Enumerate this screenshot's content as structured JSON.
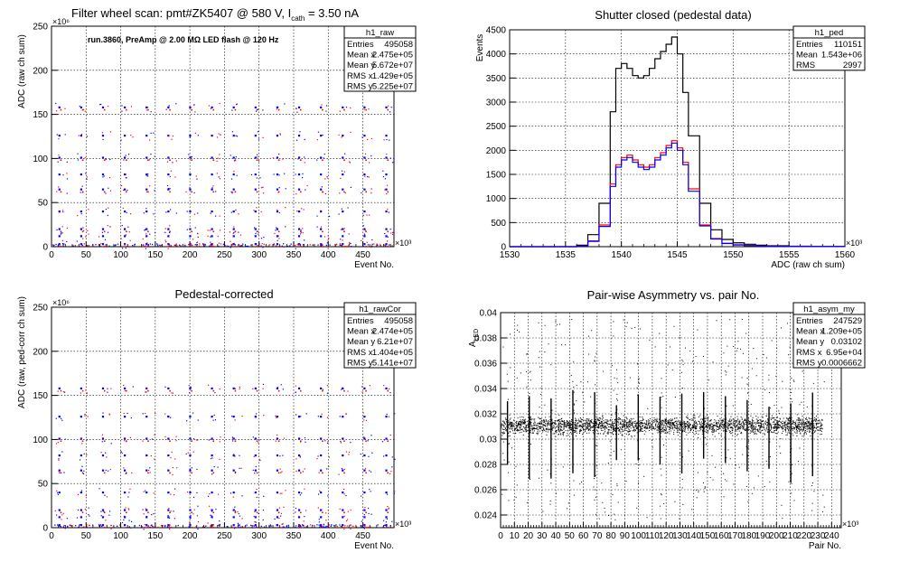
{
  "panels": [
    {
      "id": "raw",
      "title": "Filter wheel scan: pmt#ZK5407 @   580 V, I",
      "title_sub": "cath",
      "title_tail": " = 3.50 nA",
      "annotation": "run.3860, PreAmp @ 2.00 MΩ LED flash @  120 Hz",
      "stats": {
        "name": "h1_raw",
        "rows": [
          {
            "label": "Entries",
            "value": "495058"
          },
          {
            "label": "Mean x",
            "value": "2.475e+05"
          },
          {
            "label": "Mean y",
            "value": "5.672e+07"
          },
          {
            "label": "RMS x",
            "value": "1.429e+05"
          },
          {
            "label": "RMS y",
            "value": "5.225e+07"
          }
        ]
      }
    },
    {
      "id": "ped",
      "title": "Shutter closed (pedestal data)",
      "stats": {
        "name": "h1_ped",
        "rows": [
          {
            "label": "Entries",
            "value": "110151"
          },
          {
            "label": "Mean",
            "value": "1.543e+06"
          },
          {
            "label": "RMS",
            "value": "2997"
          }
        ]
      }
    },
    {
      "id": "cor",
      "title": "Pedestal-corrected",
      "stats": {
        "name": "h1_rawCor",
        "rows": [
          {
            "label": "Entries",
            "value": "495058"
          },
          {
            "label": "Mean x",
            "value": "2.474e+05"
          },
          {
            "label": "Mean y",
            "value": "6.21e+07"
          },
          {
            "label": "RMS x",
            "value": "1.404e+05"
          },
          {
            "label": "RMS y",
            "value": "5.141e+07"
          }
        ]
      }
    },
    {
      "id": "asym",
      "title": "Pair-wise Asymmetry vs. pair No.",
      "stats": {
        "name": "h1_asym_my",
        "rows": [
          {
            "label": "Entries",
            "value": "247529"
          },
          {
            "label": "Mean x",
            "value": "1.209e+05"
          },
          {
            "label": "Mean y",
            "value": "0.03102"
          },
          {
            "label": "RMS x",
            "value": "6.95e+04"
          },
          {
            "label": "RMS y",
            "value": "0.0006662"
          }
        ]
      }
    }
  ],
  "chart_data": [
    {
      "type": "scatter",
      "id": "raw",
      "title": "Filter wheel scan: pmt#ZK5407 @   580 V, Icath = 3.50 nA",
      "xlabel": "Event No.",
      "ylabel": "ADC (raw ch sum)",
      "x_exponent": "×10³",
      "y_exponent": "×10⁶",
      "xlim": [
        0,
        495
      ],
      "ylim": [
        0,
        250
      ],
      "x_ticks": [
        0,
        50,
        100,
        150,
        200,
        250,
        300,
        350,
        400,
        450
      ],
      "y_ticks": [
        0,
        50,
        100,
        150,
        200,
        250
      ],
      "grid": true,
      "cycle_period": 31.5,
      "cycle_offset": 10,
      "levels": [
        158,
        126,
        101,
        82,
        65,
        40,
        20,
        12,
        3
      ],
      "series": [
        {
          "color": "#0000ff"
        },
        {
          "color": "#ff0000"
        }
      ]
    },
    {
      "type": "line",
      "id": "ped",
      "title": "Shutter closed (pedestal data)",
      "xlabel": "ADC (raw ch sum)",
      "ylabel": "Events",
      "x_exponent": "×10³",
      "xlim": [
        1530,
        1560
      ],
      "ylim": [
        0,
        4500
      ],
      "x_ticks": [
        1530,
        1535,
        1540,
        1545,
        1550,
        1555,
        1560
      ],
      "y_ticks": [
        0,
        500,
        1000,
        1500,
        2000,
        2500,
        3000,
        3500,
        4000,
        4500
      ],
      "grid": true,
      "x": [
        1530,
        1535,
        1536,
        1537,
        1538,
        1539,
        1539.5,
        1540,
        1540.5,
        1541,
        1541.5,
        1542,
        1542.5,
        1543,
        1543.5,
        1544,
        1544.5,
        1545,
        1545.5,
        1546,
        1547,
        1548,
        1549,
        1550,
        1551,
        1552,
        1553,
        1555,
        1557,
        1560
      ],
      "series": [
        {
          "color": "#000000",
          "values": [
            0,
            0,
            30,
            250,
            900,
            2800,
            3700,
            3800,
            3700,
            3550,
            3500,
            3550,
            3700,
            3900,
            4050,
            4200,
            4350,
            4000,
            3200,
            2300,
            900,
            350,
            150,
            80,
            50,
            30,
            20,
            10,
            5,
            0
          ]
        },
        {
          "color": "#ff0000",
          "values": [
            0,
            0,
            15,
            120,
            450,
            1300,
            1700,
            1850,
            1900,
            1800,
            1700,
            1650,
            1700,
            1850,
            1950,
            2100,
            2200,
            2050,
            1750,
            1200,
            450,
            170,
            70,
            40,
            25,
            15,
            10,
            5,
            2,
            0
          ]
        },
        {
          "color": "#0000ff",
          "values": [
            0,
            0,
            15,
            110,
            420,
            1250,
            1650,
            1800,
            1850,
            1750,
            1650,
            1600,
            1650,
            1800,
            1900,
            2050,
            2150,
            2000,
            1700,
            1150,
            430,
            160,
            65,
            35,
            22,
            14,
            9,
            5,
            2,
            0
          ]
        }
      ]
    },
    {
      "type": "scatter",
      "id": "cor",
      "title": "Pedestal-corrected",
      "xlabel": "Event No.",
      "ylabel": "ADC (raw, ped-corr ch sum)",
      "x_exponent": "×10³",
      "y_exponent": "×10⁶",
      "xlim": [
        0,
        495
      ],
      "ylim": [
        0,
        250
      ],
      "x_ticks": [
        0,
        50,
        100,
        150,
        200,
        250,
        300,
        350,
        400,
        450
      ],
      "y_ticks": [
        0,
        50,
        100,
        150,
        200,
        250
      ],
      "grid": true,
      "cycle_period": 31.5,
      "cycle_offset": 10,
      "levels": [
        158,
        126,
        101,
        82,
        65,
        40,
        20,
        12,
        3
      ],
      "series": [
        {
          "color": "#0000ff"
        },
        {
          "color": "#ff0000"
        }
      ]
    },
    {
      "type": "scatter",
      "id": "asym",
      "title": "Pair-wise Asymmetry vs. pair No.",
      "xlabel": "Pair No.",
      "ylabel": "A_LED",
      "x_exponent": "×10³",
      "xlim": [
        0,
        247
      ],
      "ylim": [
        0.023,
        0.04
      ],
      "x_ticks": [
        0,
        10,
        20,
        30,
        40,
        50,
        60,
        70,
        80,
        90,
        100,
        110,
        120,
        130,
        140,
        150,
        160,
        170,
        180,
        190,
        200,
        210,
        220,
        230,
        240
      ],
      "y_ticks": [
        0.024,
        0.026,
        0.028,
        0.03,
        0.032,
        0.034,
        0.036,
        0.038,
        0.04
      ],
      "y_tick_labels": [
        "0.024",
        "0.026",
        "0.028",
        "0.03",
        "0.032",
        "0.034",
        "0.036",
        "0.038",
        "0.04"
      ],
      "grid": true,
      "band_center": 0.0311,
      "band_halfwidth": 0.0006,
      "spike_period": 15.8,
      "spike_offset": 5,
      "series": [
        {
          "color": "#000000"
        }
      ]
    }
  ]
}
